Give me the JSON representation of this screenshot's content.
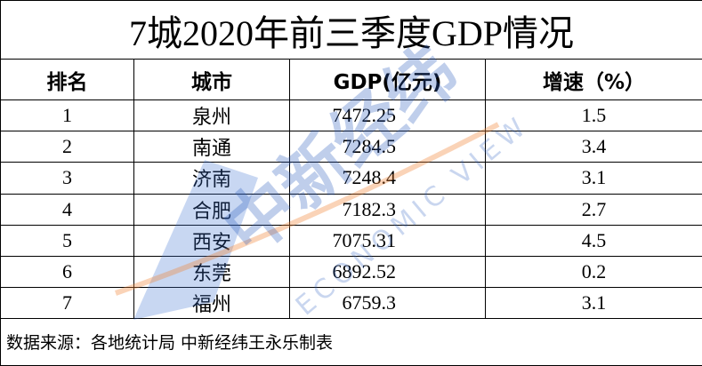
{
  "title": "7城2020年前三季度GDP情况",
  "table": {
    "header": [
      "排名",
      "城市",
      "GDP(亿元)",
      "增速（%）"
    ],
    "rows": [
      [
        "1",
        "泉州",
        "7472.25",
        "1.5"
      ],
      [
        "2",
        "南通",
        "7284.5",
        "3.4"
      ],
      [
        "3",
        "济南",
        "7248.4",
        "3.1"
      ],
      [
        "4",
        "合肥",
        "7182.3",
        "2.7"
      ],
      [
        "5",
        "西安",
        "7075.31",
        "4.5"
      ],
      [
        "6",
        "东莞",
        "6892.52",
        "0.2"
      ],
      [
        "7",
        "福州",
        "6759.3",
        "3.1"
      ]
    ]
  },
  "footer": "数据来源：各地统计局 中新经纬王永乐制表",
  "watermark": {
    "brand": "中新经纬",
    "sub": "ECONOMIC VIEW"
  }
}
